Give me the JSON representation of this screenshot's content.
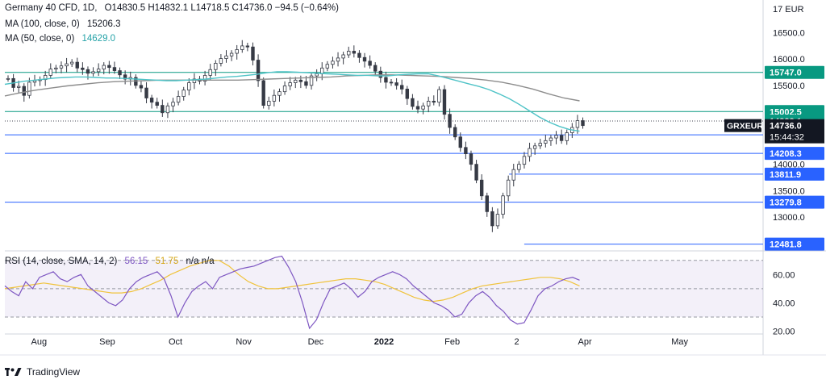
{
  "legend": {
    "symbol": "Germany 40 CFD, 1D,",
    "ohlc": "O14830.5  H14832.1  L14718.5  C14736.0  −94.5 (−0.64%)",
    "ma100_label": "MA (100, close, 0)",
    "ma100_value": "15206.3",
    "ma50_label": "MA (50, close, 0)",
    "ma50_value": "14629.0",
    "rsi_label": "RSI (14, close, SMA, 14, 2)",
    "rsi_value": "56.15",
    "rsi_sma_value": "51.75",
    "rsi_na": "n/a  n/a"
  },
  "footer": {
    "brand": "TradingView"
  },
  "colors": {
    "up": "#26a69a",
    "down": "#ef5350",
    "candle": "#363a45",
    "ma50": "#4fc3c7",
    "ma100": "#8d8d8d",
    "support": "#2962ff",
    "resistance": "#089981",
    "rsi": "#7e57c2",
    "rsi_sma": "#f0c33c"
  },
  "chart_data": [
    {
      "type": "line",
      "title": "Germany 40 CFD, 1D",
      "currency": "EUR",
      "y_ticks": [
        13000.0,
        13500.0,
        14000.0,
        14500.0,
        15000.0,
        15500.0,
        16000.0,
        16500.0
      ],
      "ylim": [
        12400,
        17000
      ],
      "x_ticks": [
        "Aug",
        "Sep",
        "Oct",
        "Nov",
        "Dec",
        "2022",
        "Feb",
        "2",
        "Apr",
        "May"
      ],
      "resistance_levels": [
        15747.0,
        15002.5
      ],
      "support_levels": [
        14559.6,
        14208.3,
        13811.9,
        13279.8,
        12481.8
      ],
      "dotted_levels": [
        14823.1
      ],
      "price_labels": {
        "green": [
          "15747.0",
          "15002.5",
          "14823.1"
        ],
        "blue": [
          "14559.6",
          "14208.3",
          "13811.9",
          "13279.8",
          "12481.8"
        ],
        "current_symbol": "GRXEUR",
        "current_price": "14736.0",
        "countdown": "15:44:32"
      },
      "series": [
        {
          "name": "Price",
          "values": [
            15630,
            15460,
            15480,
            15310,
            15560,
            15590,
            15610,
            15690,
            15810,
            15830,
            15870,
            15910,
            15940,
            15830,
            15800,
            15730,
            15760,
            15810,
            15880,
            15840,
            15780,
            15700,
            15620,
            15650,
            15500,
            15450,
            15260,
            15180,
            15120,
            14980,
            15110,
            15180,
            15290,
            15410,
            15550,
            15620,
            15580,
            15690,
            15800,
            15920,
            16010,
            16060,
            16110,
            16180,
            16250,
            16230,
            15980,
            15590,
            15120,
            15200,
            15310,
            15380,
            15490,
            15550,
            15600,
            15570,
            15500,
            15680,
            15720,
            15830,
            15900,
            15960,
            16020,
            16080,
            16150,
            16110,
            16030,
            15960,
            15880,
            15770,
            15650,
            15560,
            15550,
            15500,
            15430,
            15250,
            15100,
            15050,
            15110,
            15200,
            15180,
            15420,
            14950,
            14700,
            14520,
            14320,
            14200,
            14000,
            13700,
            13400,
            13100,
            12831,
            13050,
            13400,
            13700,
            13900,
            14000,
            14150,
            14300,
            14350,
            14400,
            14450,
            14500,
            14550,
            14450,
            14600,
            14700,
            14830,
            14736
          ]
        },
        {
          "name": "MA (50, close, 0)",
          "values": [
            15520,
            15550,
            15580,
            15600,
            15620,
            15640,
            15650,
            15660,
            15660,
            15650,
            15640,
            15640,
            15630,
            15620,
            15610,
            15600,
            15590,
            15590,
            15600,
            15610,
            15620,
            15640,
            15660,
            15670,
            15690,
            15710,
            15740,
            15760,
            15760,
            15750,
            15740,
            15730,
            15720,
            15710,
            15700,
            15690,
            15690,
            15680,
            15680,
            15700,
            15710,
            15720,
            15720,
            15680,
            15630,
            15580,
            15530,
            15480,
            15420,
            15340,
            15250,
            15140,
            15020,
            14900,
            14800,
            14720,
            14660,
            14629
          ]
        },
        {
          "name": "MA (100, close, 0)",
          "values": [
            15300,
            15360,
            15410,
            15450,
            15490,
            15520,
            15550,
            15570,
            15580,
            15590,
            15600,
            15600,
            15600,
            15600,
            15600,
            15600,
            15610,
            15620,
            15630,
            15640,
            15650,
            15660,
            15680,
            15690,
            15700,
            15700,
            15690,
            15680,
            15670,
            15650,
            15630,
            15600,
            15560,
            15500,
            15430,
            15340,
            15260,
            15206
          ]
        }
      ]
    },
    {
      "type": "line",
      "title": "RSI (14, close, SMA, 14, 2)",
      "y_ticks": [
        20.0,
        40.0,
        60.0
      ],
      "ylim": [
        18,
        75
      ],
      "band": [
        30,
        70
      ],
      "series": [
        {
          "name": "RSI",
          "values": [
            52,
            48,
            45,
            55,
            50,
            58,
            60,
            62,
            57,
            55,
            58,
            60,
            52,
            48,
            44,
            40,
            38,
            42,
            50,
            55,
            58,
            60,
            62,
            57,
            45,
            30,
            40,
            48,
            52,
            55,
            50,
            58,
            60,
            62,
            64,
            65,
            66,
            68,
            70,
            72,
            73,
            65,
            55,
            40,
            22,
            28,
            40,
            50,
            52,
            54,
            50,
            44,
            48,
            55,
            58,
            60,
            62,
            60,
            57,
            52,
            48,
            44,
            40,
            38,
            35,
            30,
            32,
            40,
            45,
            48,
            44,
            38,
            34,
            28,
            25,
            26,
            35,
            45,
            50,
            52,
            55,
            57,
            58,
            56
          ]
        },
        {
          "name": "RSI SMA",
          "values": [
            50,
            51,
            52,
            53,
            54,
            53,
            52,
            51,
            50,
            49,
            48,
            47,
            47,
            48,
            50,
            53,
            56,
            60,
            63,
            66,
            68,
            70,
            70,
            66,
            60,
            55,
            52,
            50,
            50,
            51,
            52,
            53,
            54,
            55,
            56,
            57,
            57,
            56,
            55,
            53,
            50,
            47,
            44,
            42,
            41,
            42,
            44,
            47,
            50,
            52,
            53,
            54,
            55,
            56,
            57,
            58,
            58,
            57,
            55,
            52
          ]
        }
      ]
    }
  ]
}
